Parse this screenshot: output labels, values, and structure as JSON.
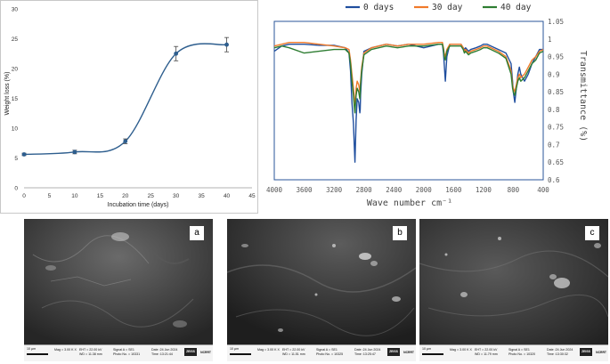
{
  "chart_data": [
    {
      "type": "line",
      "title": "",
      "xlabel": "Incubation time (days)",
      "ylabel": "Weight loss (%)",
      "xlim": [
        0,
        45
      ],
      "ylim": [
        0,
        30
      ],
      "xticks": [
        "0",
        "5",
        "10",
        "15",
        "20",
        "25",
        "30",
        "35",
        "40",
        "45"
      ],
      "yticks": [
        "0",
        "5",
        "10",
        "15",
        "20",
        "25",
        "30"
      ],
      "grid": false,
      "series": [
        {
          "x": [
            0,
            10,
            20,
            30,
            40
          ],
          "values": [
            5.6,
            6.0,
            7.8,
            22.5,
            24.0
          ],
          "error": [
            0.2,
            0.3,
            0.4,
            1.2,
            1.2
          ],
          "color": "#2E5E8E"
        }
      ]
    },
    {
      "type": "line",
      "title": "",
      "xlabel": "Wave number cm⁻¹",
      "ylabel": "Transmittance (%)",
      "xlim": [
        4000,
        400
      ],
      "ylim": [
        0.6,
        1.05
      ],
      "xticks": [
        "4000",
        "3600",
        "3200",
        "2800",
        "2400",
        "2000",
        "1600",
        "1200",
        "800",
        "400"
      ],
      "yticks": [
        "0.6",
        "0.65",
        "0.7",
        "0.75",
        "0.8",
        "0.85",
        "0.9",
        "0.95",
        "1",
        "1.05"
      ],
      "grid": false,
      "legend": "top",
      "series": [
        {
          "name": "0 days",
          "color": "#1F4E9E",
          "x": [
            4000,
            3900,
            3800,
            3600,
            3400,
            3200,
            3050,
            3000,
            2980,
            2960,
            2940,
            2930,
            2920,
            2905,
            2890,
            2870,
            2855,
            2850,
            2845,
            2830,
            2800,
            2700,
            2500,
            2350,
            2200,
            2000,
            1800,
            1750,
            1735,
            1725,
            1710,
            1690,
            1650,
            1500,
            1470,
            1455,
            1440,
            1400,
            1370,
            1300,
            1240,
            1200,
            1150,
            1100,
            1000,
            900,
            830,
            810,
            800,
            780,
            760,
            740,
            720,
            700,
            650,
            600,
            550,
            500,
            450,
            400
          ],
          "values": [
            0.965,
            0.98,
            0.985,
            0.985,
            0.982,
            0.982,
            0.975,
            0.96,
            0.91,
            0.82,
            0.76,
            0.7,
            0.65,
            0.77,
            0.83,
            0.82,
            0.79,
            0.8,
            0.84,
            0.9,
            0.965,
            0.975,
            0.985,
            0.98,
            0.985,
            0.975,
            0.985,
            0.985,
            0.96,
            0.93,
            0.88,
            0.95,
            0.985,
            0.985,
            0.975,
            0.97,
            0.975,
            0.965,
            0.97,
            0.975,
            0.98,
            0.985,
            0.985,
            0.98,
            0.97,
            0.96,
            0.93,
            0.88,
            0.85,
            0.82,
            0.86,
            0.9,
            0.92,
            0.9,
            0.88,
            0.9,
            0.93,
            0.95,
            0.97,
            0.97
          ]
        },
        {
          "name": "30 day",
          "color": "#F07A2A",
          "x": [
            4000,
            3900,
            3800,
            3600,
            3400,
            3200,
            3050,
            3000,
            2980,
            2960,
            2940,
            2930,
            2920,
            2905,
            2890,
            2870,
            2855,
            2850,
            2845,
            2830,
            2800,
            2700,
            2500,
            2350,
            2200,
            2000,
            1800,
            1750,
            1735,
            1725,
            1710,
            1690,
            1650,
            1500,
            1470,
            1455,
            1440,
            1400,
            1370,
            1300,
            1240,
            1200,
            1150,
            1100,
            1000,
            900,
            830,
            810,
            800,
            780,
            760,
            740,
            720,
            700,
            650,
            600,
            550,
            500,
            450,
            400
          ],
          "values": [
            0.98,
            0.985,
            0.99,
            0.99,
            0.985,
            0.98,
            0.975,
            0.97,
            0.94,
            0.9,
            0.86,
            0.83,
            0.81,
            0.86,
            0.88,
            0.87,
            0.85,
            0.86,
            0.88,
            0.92,
            0.96,
            0.975,
            0.985,
            0.98,
            0.985,
            0.985,
            0.99,
            0.99,
            0.975,
            0.96,
            0.95,
            0.97,
            0.985,
            0.985,
            0.975,
            0.965,
            0.97,
            0.96,
            0.965,
            0.97,
            0.975,
            0.98,
            0.98,
            0.975,
            0.965,
            0.95,
            0.91,
            0.87,
            0.86,
            0.85,
            0.87,
            0.89,
            0.9,
            0.89,
            0.9,
            0.92,
            0.94,
            0.95,
            0.965,
            0.97
          ]
        },
        {
          "name": "40 day",
          "color": "#2E7D32",
          "x": [
            4000,
            3900,
            3800,
            3600,
            3400,
            3200,
            3050,
            3000,
            2980,
            2960,
            2940,
            2930,
            2920,
            2905,
            2890,
            2870,
            2855,
            2850,
            2845,
            2830,
            2800,
            2700,
            2500,
            2350,
            2200,
            2000,
            1800,
            1750,
            1735,
            1725,
            1710,
            1690,
            1650,
            1500,
            1470,
            1455,
            1440,
            1400,
            1370,
            1300,
            1240,
            1200,
            1150,
            1100,
            1000,
            900,
            830,
            810,
            800,
            780,
            760,
            740,
            720,
            700,
            650,
            600,
            550,
            500,
            450,
            400
          ],
          "values": [
            0.975,
            0.98,
            0.975,
            0.96,
            0.965,
            0.97,
            0.97,
            0.96,
            0.93,
            0.88,
            0.84,
            0.81,
            0.79,
            0.84,
            0.86,
            0.85,
            0.83,
            0.84,
            0.87,
            0.91,
            0.955,
            0.97,
            0.98,
            0.975,
            0.98,
            0.98,
            0.985,
            0.985,
            0.97,
            0.95,
            0.94,
            0.965,
            0.98,
            0.98,
            0.97,
            0.96,
            0.965,
            0.955,
            0.96,
            0.965,
            0.97,
            0.975,
            0.975,
            0.97,
            0.96,
            0.945,
            0.9,
            0.86,
            0.85,
            0.84,
            0.86,
            0.88,
            0.89,
            0.88,
            0.89,
            0.91,
            0.93,
            0.94,
            0.96,
            0.965
          ]
        }
      ]
    }
  ],
  "sem_panels": [
    {
      "label": "a",
      "scale": "10 µm",
      "mag": "Mag = 3.00 K X",
      "eht": "EHT = 22.00 kV",
      "wd": "WD = 11.38 mm",
      "signal": "Signal A = SE1",
      "photo": "Photo No. = 10331",
      "date": "Date :24 Jun 2024",
      "time": "Time :13:21:44",
      "logo": "ZEISS",
      "extra": "NCRRT"
    },
    {
      "label": "b",
      "scale": "10 µm",
      "mag": "Mag = 3.00 K X",
      "eht": "EHT = 22.00 kV",
      "wd": "WD = 11.51 mm",
      "signal": "Signal A = SE1",
      "photo": "Photo No. = 10325",
      "date": "Date :24 Jun 2024",
      "time": "Time :13:25:47",
      "logo": "ZEISS",
      "extra": "NCRRT"
    },
    {
      "label": "c",
      "scale": "10 µm",
      "mag": "Mag = 3.00 K X",
      "eht": "EHT = 22.00 kV",
      "wd": "WD = 11.79 mm",
      "signal": "Signal A = SE1",
      "photo": "Photo No. = 10320",
      "date": "Date :24 Jun 2024",
      "time": "Time :13:30:32",
      "logo": "ZEISS",
      "extra": "NCRRT"
    }
  ]
}
